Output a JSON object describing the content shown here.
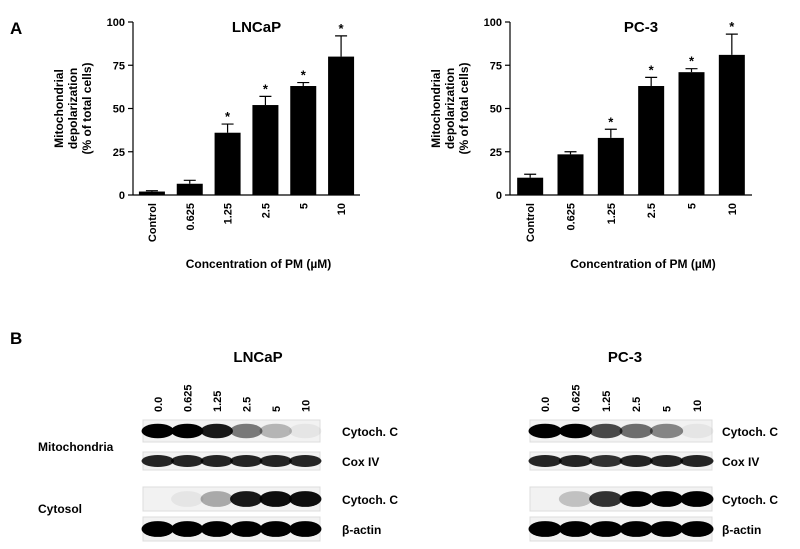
{
  "panels": {
    "a": "A",
    "b": "B"
  },
  "chart_data": [
    {
      "type": "bar",
      "title": "LNCaP",
      "ylabel": [
        "Mitochondrial",
        "depolarization",
        "(% of total cells)"
      ],
      "xlabel": "Concentration of PM (µM)",
      "categories": [
        "Control",
        "0.625",
        "1.25",
        "2.5",
        "5",
        "10"
      ],
      "values": [
        2,
        6.5,
        36,
        52,
        63,
        80
      ],
      "errors": [
        0.5,
        2,
        5,
        5,
        2,
        12
      ],
      "significance": [
        null,
        null,
        "*",
        "*",
        "*",
        "*"
      ],
      "color": "#000000",
      "ylim": [
        0,
        100
      ],
      "yticks": [
        0,
        25,
        50,
        75,
        100
      ]
    },
    {
      "type": "bar",
      "title": "PC-3",
      "ylabel": [
        "Mitochondrial",
        "depolarization",
        "(% of total cells)"
      ],
      "xlabel": "Concentration of PM (µM)",
      "categories": [
        "Control",
        "0.625",
        "1.25",
        "2.5",
        "5",
        "10"
      ],
      "values": [
        10,
        23.5,
        33,
        63,
        71,
        81
      ],
      "errors": [
        2,
        1.5,
        5,
        5,
        2,
        12
      ],
      "significance": [
        null,
        null,
        "*",
        "*",
        "*",
        "*"
      ],
      "color": "#000000",
      "ylim": [
        0,
        100
      ],
      "yticks": [
        0,
        25,
        50,
        75,
        100
      ]
    }
  ],
  "blots": [
    {
      "title": "LNCaP",
      "lanes": [
        "0.0",
        "0.625",
        "1.25",
        "2.5",
        "5",
        "10"
      ],
      "groups": [
        "Mitochondria",
        "Cytosol"
      ],
      "rows": [
        "Cytoch. C",
        "Cox IV",
        "Cytoch. C",
        "β-actin"
      ]
    },
    {
      "title": "PC-3",
      "lanes": [
        "0.0",
        "0.625",
        "1.25",
        "2.5",
        "5",
        "10"
      ],
      "rows": [
        "Cytoch. C",
        "Cox IV",
        "Cytoch. C",
        "β-actin"
      ]
    }
  ]
}
